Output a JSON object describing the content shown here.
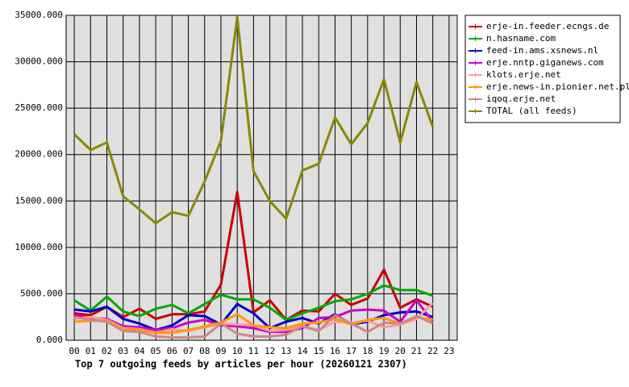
{
  "chart_data": {
    "type": "line",
    "title": "Top 7 outgoing feeds by articles per hour (20260121 2307)",
    "categories": [
      "00",
      "01",
      "02",
      "03",
      "04",
      "05",
      "06",
      "07",
      "08",
      "09",
      "10",
      "11",
      "12",
      "13",
      "14",
      "15",
      "16",
      "17",
      "18",
      "19",
      "20",
      "21",
      "22",
      "23"
    ],
    "ylim": [
      0,
      35000
    ],
    "yticks": [
      {
        "value": 0,
        "label": "0.000"
      },
      {
        "value": 5000,
        "label": "5000.000"
      },
      {
        "value": 10000,
        "label": "10000.000"
      },
      {
        "value": 15000,
        "label": "15000.000"
      },
      {
        "value": 20000,
        "label": "20000.000"
      },
      {
        "value": 25000,
        "label": "25000.000"
      },
      {
        "value": 30000,
        "label": "30000.000"
      },
      {
        "value": 35000,
        "label": "35000.000"
      }
    ],
    "grid": true,
    "legend": "right",
    "series": [
      {
        "name": "erje-in.feeder.ecngs.de",
        "color": "#cc0000",
        "values": [
          2900,
          2700,
          3600,
          2500,
          3400,
          2300,
          2800,
          2800,
          3100,
          6000,
          16000,
          3000,
          4300,
          2200,
          3200,
          3100,
          5000,
          3800,
          4500,
          7600,
          3500,
          4400,
          3600,
          null
        ]
      },
      {
        "name": "n.hasname.com",
        "color": "#00aa00",
        "values": [
          4300,
          3200,
          4700,
          3100,
          2600,
          3400,
          3800,
          2900,
          3900,
          4900,
          4400,
          4400,
          3500,
          2200,
          2900,
          3500,
          4200,
          4400,
          5000,
          5900,
          5400,
          5400,
          4800,
          null
        ]
      },
      {
        "name": "feed-in.ams.xsnews.nl",
        "color": "#0000cc",
        "values": [
          3300,
          3100,
          3600,
          2300,
          1800,
          1100,
          1600,
          2700,
          2600,
          1700,
          3900,
          2900,
          1300,
          2000,
          2400,
          1800,
          2800,
          1700,
          2000,
          2700,
          3000,
          3100,
          2500,
          null
        ]
      },
      {
        "name": "erje.nntp.giganews.com",
        "color": "#cc00cc",
        "values": [
          2700,
          2400,
          2300,
          1500,
          1400,
          1100,
          1300,
          1900,
          2200,
          1600,
          1500,
          1300,
          900,
          900,
          1300,
          2400,
          2500,
          3200,
          3300,
          3200,
          2000,
          4300,
          2000,
          null
        ]
      },
      {
        "name": "klots.erje.net",
        "color": "#ff9999",
        "values": [
          2300,
          2500,
          2200,
          1300,
          1200,
          800,
          1200,
          1000,
          1400,
          1800,
          1700,
          1600,
          1000,
          1100,
          1500,
          1100,
          2000,
          1900,
          2100,
          1400,
          1700,
          2300,
          4000,
          null
        ]
      },
      {
        "name": "erje.news-in.pionier.net.pl",
        "color": "#ff9900",
        "values": [
          2000,
          2100,
          2100,
          1200,
          1100,
          800,
          800,
          1100,
          1500,
          1900,
          2800,
          1600,
          1400,
          1300,
          1800,
          1900,
          2300,
          1700,
          2200,
          2400,
          1800,
          2500,
          2200,
          null
        ]
      },
      {
        "name": "iqoq.erje.net",
        "color": "#cc8888",
        "values": [
          2500,
          2200,
          2000,
          1000,
          900,
          400,
          300,
          300,
          400,
          1800,
          700,
          400,
          400,
          600,
          1500,
          1000,
          2700,
          1800,
          900,
          1900,
          1800,
          2600,
          1800,
          null
        ]
      },
      {
        "name": "TOTAL (all feeds)",
        "color": "#888800",
        "values": [
          22200,
          20500,
          21300,
          15500,
          14100,
          12600,
          13800,
          13400,
          17100,
          21500,
          34800,
          18200,
          15000,
          13100,
          18300,
          19000,
          24000,
          21100,
          23400,
          28100,
          21300,
          27800,
          23000,
          null
        ]
      }
    ]
  }
}
